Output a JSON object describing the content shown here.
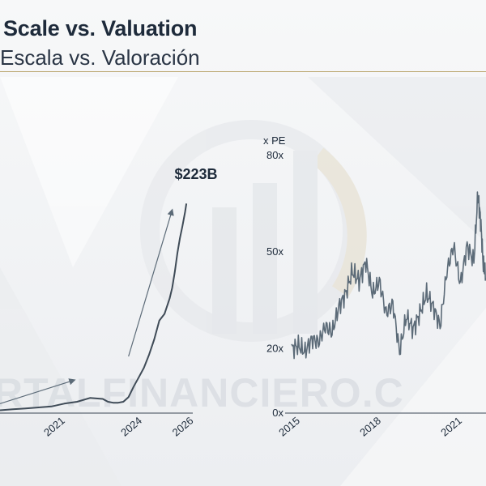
{
  "header": {
    "title": "Scale vs. Valuation",
    "subtitle": "Escala vs. Valoración"
  },
  "watermark": {
    "text": "RTALFINANCIERO.C",
    "icon": "bar-chart-logo-icon"
  },
  "colors": {
    "line": "#5c6b78",
    "text": "#1e2b3b",
    "accent_rule": "#b8a36a"
  },
  "chart_data": [
    {
      "type": "line",
      "title": "",
      "xlabel": "",
      "ylabel": "",
      "x_ticks": [
        {
          "value": 2021,
          "label": "2021"
        },
        {
          "value": 2024,
          "label": "2024"
        },
        {
          "value": 2026,
          "label": "2026"
        }
      ],
      "xlim": [
        2018.8,
        2026.3
      ],
      "ylim": [
        0,
        240
      ],
      "annotation": {
        "label": "$223B",
        "value": 223
      },
      "series": [
        {
          "name": "",
          "x": [
            2018.8,
            2019.3,
            2019.8,
            2020.3,
            2020.8,
            2021.3,
            2021.8,
            2022.3,
            2022.8,
            2023.0,
            2023.2,
            2023.4,
            2023.6,
            2023.8,
            2024.0,
            2024.2,
            2024.4,
            2024.6,
            2024.8,
            2025.0,
            2025.2,
            2025.4,
            2025.5,
            2025.6,
            2025.7,
            2025.8,
            2025.9,
            2026.0,
            2026.05
          ],
          "values": [
            3,
            4,
            5,
            6,
            7,
            10,
            12,
            16,
            15,
            12,
            11,
            11,
            12,
            17,
            28,
            38,
            48,
            62,
            78,
            98,
            105,
            120,
            133,
            150,
            168,
            186,
            198,
            212,
            223
          ]
        }
      ],
      "trend_arrows": [
        {
          "x": [
            2018.8,
            2021.7
          ],
          "values": [
            10,
            35
          ]
        },
        {
          "x": [
            2023.8,
            2025.5
          ],
          "values": [
            60,
            215
          ]
        }
      ]
    },
    {
      "type": "line",
      "title": "",
      "xlabel": "",
      "ylabel": "x PE",
      "y_ticks": [
        {
          "value": 0,
          "label": "0x"
        },
        {
          "value": 20,
          "label": "20x"
        },
        {
          "value": 50,
          "label": "50x"
        },
        {
          "value": 80,
          "label": "80x"
        }
      ],
      "x_ticks": [
        {
          "value": 2015,
          "label": "2015"
        },
        {
          "value": 2018,
          "label": "2018"
        },
        {
          "value": 2021,
          "label": "2021"
        }
      ],
      "xlim": [
        2015,
        2022.2
      ],
      "ylim": [
        0,
        85
      ],
      "series": [
        {
          "name": "",
          "x": [
            2015.0,
            2015.25,
            2015.5,
            2015.75,
            2016.0,
            2016.25,
            2016.5,
            2016.75,
            2017.0,
            2017.25,
            2017.5,
            2017.75,
            2018.0,
            2018.25,
            2018.5,
            2018.75,
            2019.0,
            2019.25,
            2019.5,
            2019.75,
            2020.0,
            2020.25,
            2020.5,
            2020.75,
            2021.0,
            2021.25,
            2021.5,
            2021.75,
            2021.9,
            2022.0,
            2022.1,
            2022.2
          ],
          "values": [
            20,
            21,
            19,
            23,
            22,
            27,
            25,
            33,
            37,
            44,
            41,
            47,
            37,
            41,
            31,
            34,
            19,
            30,
            26,
            31,
            37,
            33,
            27,
            44,
            52,
            40,
            52,
            47,
            68,
            60,
            46,
            42
          ]
        }
      ]
    }
  ]
}
